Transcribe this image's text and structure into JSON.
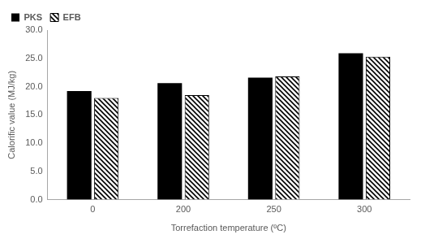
{
  "chart_data": {
    "type": "bar",
    "x_label": "Torrefaction temperature (ºC)",
    "y_label": "Calorific value (MJ/kg)",
    "categories": [
      "0",
      "200",
      "250",
      "300"
    ],
    "series": [
      {
        "name": "PKS",
        "color": "#000000",
        "values": [
          19.2,
          20.6,
          21.6,
          25.9
        ]
      },
      {
        "name": "EFB",
        "color": "#000000",
        "values": [
          18.0,
          18.5,
          21.8,
          25.3
        ]
      }
    ],
    "ylim": [
      0,
      30
    ],
    "yticks": [
      {
        "value": 0,
        "label": "0.0"
      },
      {
        "value": 5,
        "label": "5.0"
      },
      {
        "value": 10,
        "label": "10.0"
      },
      {
        "value": 15,
        "label": "15.0"
      },
      {
        "value": 20,
        "label": "20.0"
      },
      {
        "value": 25,
        "label": "25.0"
      },
      {
        "value": 30,
        "label": "30.0"
      }
    ],
    "grid": false,
    "legend": "upper left"
  }
}
